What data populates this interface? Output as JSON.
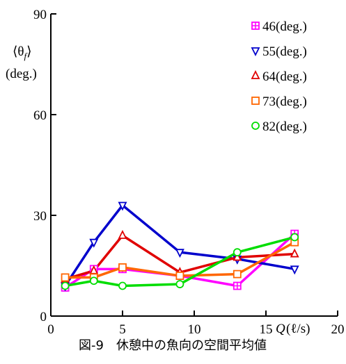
{
  "chart_data": {
    "type": "line",
    "xlim": [
      0,
      20
    ],
    "ylim": [
      0,
      90
    ],
    "xticks": [
      "0",
      "5",
      "10",
      "15",
      "20"
    ],
    "yticks": [
      "0",
      "30",
      "60",
      "90"
    ],
    "ylabel_line1": "⟨θ",
    "ylabel_sub": "f",
    "ylabel_line1_end": "⟩",
    "ylabel_line2": "(deg.)",
    "xlabel_q": "Q",
    "xlabel_unit": "(ℓ/s)",
    "legend_position": "top-right",
    "series": [
      {
        "name": "46(deg.)",
        "color": "#ff00ff",
        "marker": "square-cross",
        "x": [
          1,
          3,
          5,
          9,
          13,
          17
        ],
        "y": [
          8.5,
          14,
          14,
          12,
          9,
          24.5
        ]
      },
      {
        "name": "55(deg.)",
        "color": "#0000cc",
        "marker": "triangle-down",
        "x": [
          1,
          3,
          5,
          9,
          13,
          17
        ],
        "y": [
          9,
          22,
          33,
          19,
          17,
          14
        ]
      },
      {
        "name": "64(deg.)",
        "color": "#e00000",
        "marker": "triangle-up",
        "x": [
          1,
          3,
          5,
          9,
          13,
          17
        ],
        "y": [
          11,
          13.5,
          24,
          13,
          17.5,
          18.5
        ]
      },
      {
        "name": "73(deg.)",
        "color": "#ff6600",
        "marker": "square",
        "x": [
          1,
          3,
          5,
          9,
          13,
          17
        ],
        "y": [
          11.5,
          11.5,
          14.5,
          12,
          12.5,
          22
        ]
      },
      {
        "name": "82(deg.)",
        "color": "#00dd00",
        "marker": "circle",
        "x": [
          1,
          3,
          5,
          9,
          13,
          17
        ],
        "y": [
          9,
          10.5,
          9,
          9.5,
          19,
          23.5
        ]
      }
    ]
  },
  "caption": "図-9　休憩中の魚向の空間平均値"
}
